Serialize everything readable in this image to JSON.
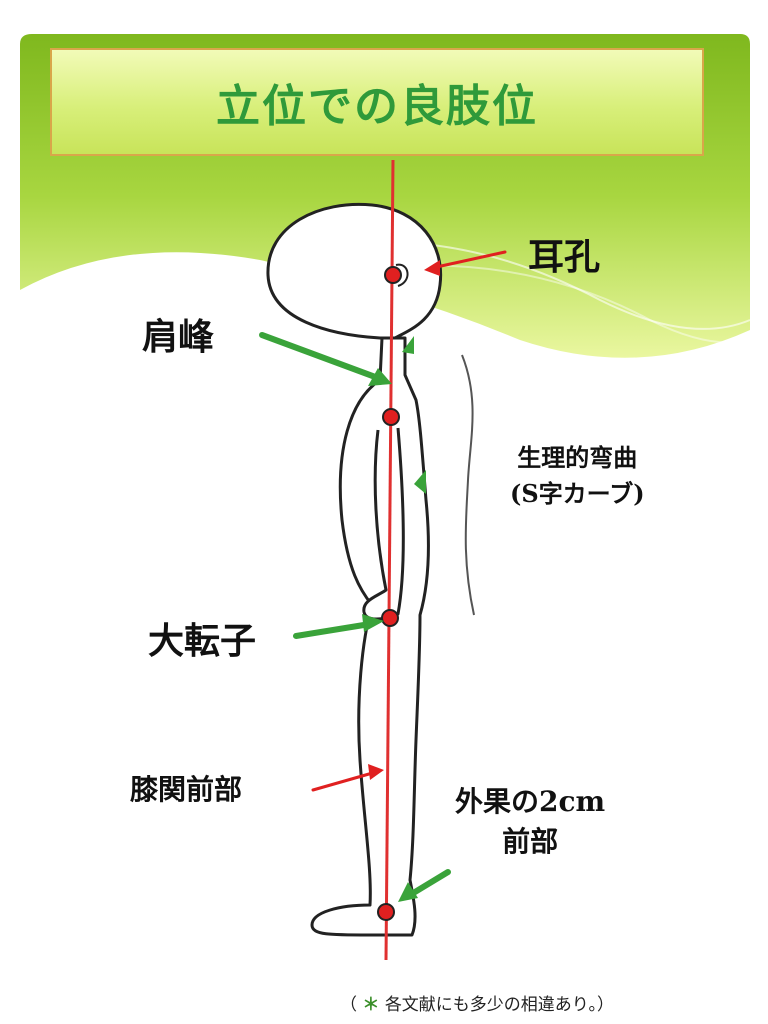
{
  "title": "立位での良肢位",
  "labels": {
    "ear": "耳孔",
    "shoulder": "肩峰",
    "curve_line1": "生理的弯曲",
    "curve_line2": "(S字カーブ)",
    "trochanter": "大転子",
    "knee": "膝関前部",
    "ankle_line1": "外果の2cm",
    "ankle_line2": "前部"
  },
  "note": {
    "open": "（",
    "asterisk": "＊",
    "text": "各文献にも多少の相違あり。）"
  },
  "colors": {
    "green_light": "#eef9a8",
    "green_mid": "#a8d640",
    "green_dark": "#6aaa1f",
    "title_text": "#2f9a3a",
    "arrow_green": "#3aa33a",
    "arrow_red": "#e02020",
    "plumb_line": "#e03030"
  }
}
